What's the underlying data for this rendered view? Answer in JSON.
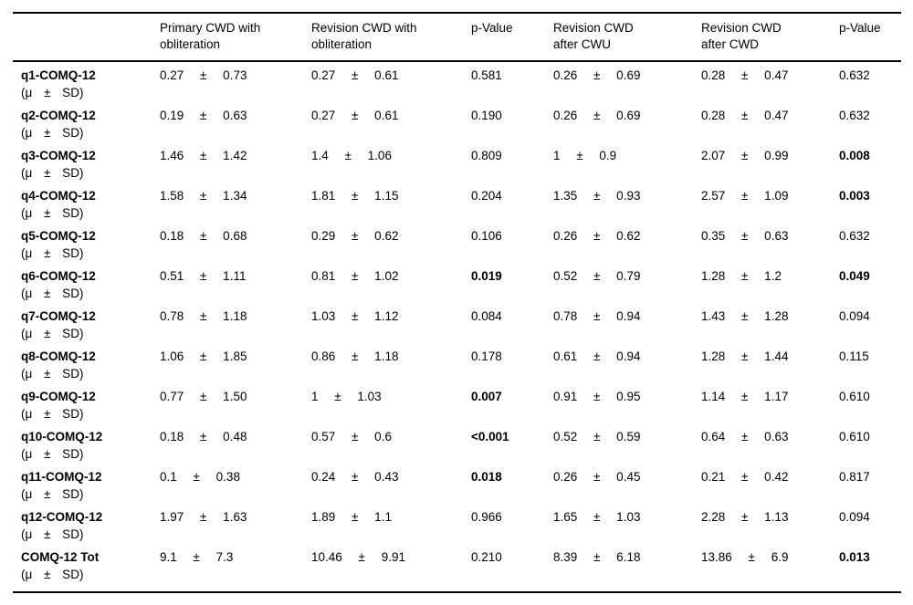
{
  "table": {
    "row_sublabel": "(μ ± SD)",
    "columns": [
      {
        "label": "",
        "lines": []
      },
      {
        "label": "Primary CWD with obliteration",
        "lines": [
          "Primary CWD with",
          "obliteration"
        ]
      },
      {
        "label": "Revision CWD with obliteration",
        "lines": [
          "Revision CWD with",
          "obliteration"
        ]
      },
      {
        "label": "p-Value",
        "lines": [
          "p-Value"
        ]
      },
      {
        "label": "Revision CWD after CWU",
        "lines": [
          "Revision CWD",
          "after CWU"
        ]
      },
      {
        "label": "Revision CWD after CWD",
        "lines": [
          "Revision CWD",
          "after CWD"
        ]
      },
      {
        "label": "p-Value",
        "lines": [
          "p-Value"
        ]
      }
    ],
    "rows": [
      {
        "label": "q1-COMQ-12",
        "primary": "0.27 ± 0.73",
        "revision_obliteration": "0.27 ± 0.61",
        "p1": "0.581",
        "p1_bold": false,
        "after_cwu": "0.26 ± 0.69",
        "after_cwd": "0.28 ± 0.47",
        "p2": "0.632",
        "p2_bold": false
      },
      {
        "label": "q2-COMQ-12",
        "primary": "0.19 ± 0.63",
        "revision_obliteration": "0.27 ± 0.61",
        "p1": "0.190",
        "p1_bold": false,
        "after_cwu": "0.26 ± 0.69",
        "after_cwd": "0.28 ± 0.47",
        "p2": "0.632",
        "p2_bold": false
      },
      {
        "label": "q3-COMQ-12",
        "primary": "1.46 ± 1.42",
        "revision_obliteration": "1.4 ± 1.06",
        "p1": "0.809",
        "p1_bold": false,
        "after_cwu": "1 ± 0.9",
        "after_cwd": "2.07 ± 0.99",
        "p2": "0.008",
        "p2_bold": true
      },
      {
        "label": "q4-COMQ-12",
        "primary": "1.58 ± 1.34",
        "revision_obliteration": "1.81 ± 1.15",
        "p1": "0.204",
        "p1_bold": false,
        "after_cwu": "1.35 ± 0.93",
        "after_cwd": "2.57 ± 1.09",
        "p2": "0.003",
        "p2_bold": true
      },
      {
        "label": "q5-COMQ-12",
        "primary": "0.18 ± 0.68",
        "revision_obliteration": "0.29 ± 0.62",
        "p1": "0.106",
        "p1_bold": false,
        "after_cwu": "0.26 ± 0.62",
        "after_cwd": "0.35 ± 0.63",
        "p2": "0.632",
        "p2_bold": false
      },
      {
        "label": "q6-COMQ-12",
        "primary": "0.51 ± 1.11",
        "revision_obliteration": "0.81 ± 1.02",
        "p1": "0.019",
        "p1_bold": true,
        "after_cwu": "0.52 ± 0.79",
        "after_cwd": "1.28 ± 1.2",
        "p2": "0.049",
        "p2_bold": true
      },
      {
        "label": "q7-COMQ-12",
        "primary": "0.78 ± 1.18",
        "revision_obliteration": "1.03 ± 1.12",
        "p1": "0.084",
        "p1_bold": false,
        "after_cwu": "0.78 ± 0.94",
        "after_cwd": "1.43 ± 1.28",
        "p2": "0.094",
        "p2_bold": false
      },
      {
        "label": "q8-COMQ-12",
        "primary": "1.06 ± 1.85",
        "revision_obliteration": "0.86 ± 1.18",
        "p1": "0.178",
        "p1_bold": false,
        "after_cwu": "0.61 ± 0.94",
        "after_cwd": "1.28 ± 1.44",
        "p2": "0.115",
        "p2_bold": false
      },
      {
        "label": "q9-COMQ-12",
        "primary": "0.77 ± 1.50",
        "revision_obliteration": "1 ± 1.03",
        "p1": "0.007",
        "p1_bold": true,
        "after_cwu": "0.91 ± 0.95",
        "after_cwd": "1.14 ± 1.17",
        "p2": "0.610",
        "p2_bold": false
      },
      {
        "label": "q10-COMQ-12",
        "primary": "0.18 ± 0.48",
        "revision_obliteration": "0.57 ± 0.6",
        "p1": "<0.001",
        "p1_bold": true,
        "after_cwu": "0.52 ± 0.59",
        "after_cwd": "0.64 ± 0.63",
        "p2": "0.610",
        "p2_bold": false
      },
      {
        "label": "q11-COMQ-12",
        "primary": "0.1 ± 0.38",
        "revision_obliteration": "0.24 ± 0.43",
        "p1": "0.018",
        "p1_bold": true,
        "after_cwu": "0.26 ± 0.45",
        "after_cwd": "0.21 ± 0.42",
        "p2": "0.817",
        "p2_bold": false
      },
      {
        "label": "q12-COMQ-12",
        "primary": "1.97 ± 1.63",
        "revision_obliteration": "1.89 ± 1.1",
        "p1": "0.966",
        "p1_bold": false,
        "after_cwu": "1.65 ± 1.03",
        "after_cwd": "2.28 ± 1.13",
        "p2": "0.094",
        "p2_bold": false
      },
      {
        "label": "COMQ-12 Tot",
        "primary": "9.1 ± 7.3",
        "revision_obliteration": "10.46 ± 9.91",
        "p1": "0.210",
        "p1_bold": false,
        "after_cwu": "8.39 ± 6.18",
        "after_cwd": "13.86 ± 6.9",
        "p2": "0.013",
        "p2_bold": true
      }
    ]
  }
}
